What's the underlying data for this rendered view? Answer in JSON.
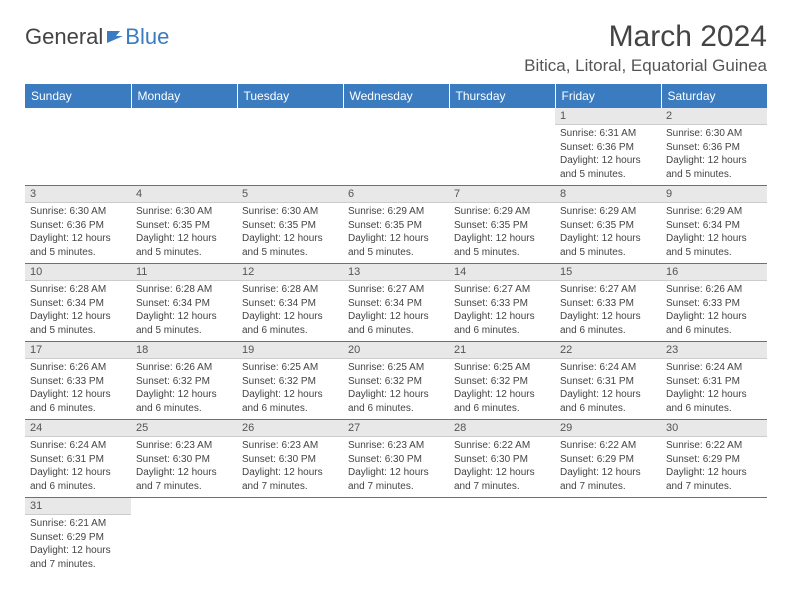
{
  "logo": {
    "part1": "General",
    "part2": "Blue"
  },
  "title": "March 2024",
  "location": "Bitica, Litoral, Equatorial Guinea",
  "colors": {
    "header_bg": "#3b7bbf",
    "header_text": "#ffffff",
    "daynum_bg": "#e8e8e8",
    "border": "#3b7bbf",
    "text": "#444444"
  },
  "weekdays": [
    "Sunday",
    "Monday",
    "Tuesday",
    "Wednesday",
    "Thursday",
    "Friday",
    "Saturday"
  ],
  "weeks": [
    [
      null,
      null,
      null,
      null,
      null,
      {
        "n": "1",
        "sr": "Sunrise: 6:31 AM",
        "ss": "Sunset: 6:36 PM",
        "dl": "Daylight: 12 hours and 5 minutes."
      },
      {
        "n": "2",
        "sr": "Sunrise: 6:30 AM",
        "ss": "Sunset: 6:36 PM",
        "dl": "Daylight: 12 hours and 5 minutes."
      }
    ],
    [
      {
        "n": "3",
        "sr": "Sunrise: 6:30 AM",
        "ss": "Sunset: 6:36 PM",
        "dl": "Daylight: 12 hours and 5 minutes."
      },
      {
        "n": "4",
        "sr": "Sunrise: 6:30 AM",
        "ss": "Sunset: 6:35 PM",
        "dl": "Daylight: 12 hours and 5 minutes."
      },
      {
        "n": "5",
        "sr": "Sunrise: 6:30 AM",
        "ss": "Sunset: 6:35 PM",
        "dl": "Daylight: 12 hours and 5 minutes."
      },
      {
        "n": "6",
        "sr": "Sunrise: 6:29 AM",
        "ss": "Sunset: 6:35 PM",
        "dl": "Daylight: 12 hours and 5 minutes."
      },
      {
        "n": "7",
        "sr": "Sunrise: 6:29 AM",
        "ss": "Sunset: 6:35 PM",
        "dl": "Daylight: 12 hours and 5 minutes."
      },
      {
        "n": "8",
        "sr": "Sunrise: 6:29 AM",
        "ss": "Sunset: 6:35 PM",
        "dl": "Daylight: 12 hours and 5 minutes."
      },
      {
        "n": "9",
        "sr": "Sunrise: 6:29 AM",
        "ss": "Sunset: 6:34 PM",
        "dl": "Daylight: 12 hours and 5 minutes."
      }
    ],
    [
      {
        "n": "10",
        "sr": "Sunrise: 6:28 AM",
        "ss": "Sunset: 6:34 PM",
        "dl": "Daylight: 12 hours and 5 minutes."
      },
      {
        "n": "11",
        "sr": "Sunrise: 6:28 AM",
        "ss": "Sunset: 6:34 PM",
        "dl": "Daylight: 12 hours and 5 minutes."
      },
      {
        "n": "12",
        "sr": "Sunrise: 6:28 AM",
        "ss": "Sunset: 6:34 PM",
        "dl": "Daylight: 12 hours and 6 minutes."
      },
      {
        "n": "13",
        "sr": "Sunrise: 6:27 AM",
        "ss": "Sunset: 6:34 PM",
        "dl": "Daylight: 12 hours and 6 minutes."
      },
      {
        "n": "14",
        "sr": "Sunrise: 6:27 AM",
        "ss": "Sunset: 6:33 PM",
        "dl": "Daylight: 12 hours and 6 minutes."
      },
      {
        "n": "15",
        "sr": "Sunrise: 6:27 AM",
        "ss": "Sunset: 6:33 PM",
        "dl": "Daylight: 12 hours and 6 minutes."
      },
      {
        "n": "16",
        "sr": "Sunrise: 6:26 AM",
        "ss": "Sunset: 6:33 PM",
        "dl": "Daylight: 12 hours and 6 minutes."
      }
    ],
    [
      {
        "n": "17",
        "sr": "Sunrise: 6:26 AM",
        "ss": "Sunset: 6:33 PM",
        "dl": "Daylight: 12 hours and 6 minutes."
      },
      {
        "n": "18",
        "sr": "Sunrise: 6:26 AM",
        "ss": "Sunset: 6:32 PM",
        "dl": "Daylight: 12 hours and 6 minutes."
      },
      {
        "n": "19",
        "sr": "Sunrise: 6:25 AM",
        "ss": "Sunset: 6:32 PM",
        "dl": "Daylight: 12 hours and 6 minutes."
      },
      {
        "n": "20",
        "sr": "Sunrise: 6:25 AM",
        "ss": "Sunset: 6:32 PM",
        "dl": "Daylight: 12 hours and 6 minutes."
      },
      {
        "n": "21",
        "sr": "Sunrise: 6:25 AM",
        "ss": "Sunset: 6:32 PM",
        "dl": "Daylight: 12 hours and 6 minutes."
      },
      {
        "n": "22",
        "sr": "Sunrise: 6:24 AM",
        "ss": "Sunset: 6:31 PM",
        "dl": "Daylight: 12 hours and 6 minutes."
      },
      {
        "n": "23",
        "sr": "Sunrise: 6:24 AM",
        "ss": "Sunset: 6:31 PM",
        "dl": "Daylight: 12 hours and 6 minutes."
      }
    ],
    [
      {
        "n": "24",
        "sr": "Sunrise: 6:24 AM",
        "ss": "Sunset: 6:31 PM",
        "dl": "Daylight: 12 hours and 6 minutes."
      },
      {
        "n": "25",
        "sr": "Sunrise: 6:23 AM",
        "ss": "Sunset: 6:30 PM",
        "dl": "Daylight: 12 hours and 7 minutes."
      },
      {
        "n": "26",
        "sr": "Sunrise: 6:23 AM",
        "ss": "Sunset: 6:30 PM",
        "dl": "Daylight: 12 hours and 7 minutes."
      },
      {
        "n": "27",
        "sr": "Sunrise: 6:23 AM",
        "ss": "Sunset: 6:30 PM",
        "dl": "Daylight: 12 hours and 7 minutes."
      },
      {
        "n": "28",
        "sr": "Sunrise: 6:22 AM",
        "ss": "Sunset: 6:30 PM",
        "dl": "Daylight: 12 hours and 7 minutes."
      },
      {
        "n": "29",
        "sr": "Sunrise: 6:22 AM",
        "ss": "Sunset: 6:29 PM",
        "dl": "Daylight: 12 hours and 7 minutes."
      },
      {
        "n": "30",
        "sr": "Sunrise: 6:22 AM",
        "ss": "Sunset: 6:29 PM",
        "dl": "Daylight: 12 hours and 7 minutes."
      }
    ],
    [
      {
        "n": "31",
        "sr": "Sunrise: 6:21 AM",
        "ss": "Sunset: 6:29 PM",
        "dl": "Daylight: 12 hours and 7 minutes."
      },
      null,
      null,
      null,
      null,
      null,
      null
    ]
  ]
}
